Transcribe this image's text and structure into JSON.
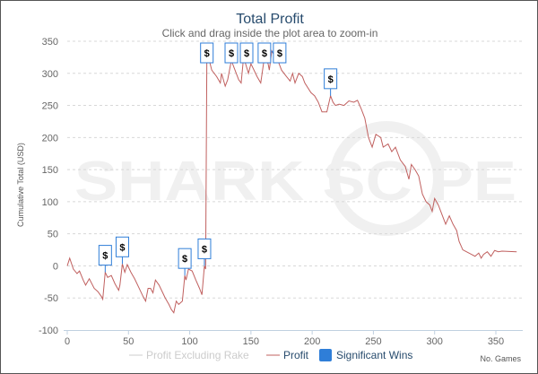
{
  "chart_data": {
    "type": "line",
    "title": "Total Profit",
    "subtitle": "Click and drag inside the plot area to zoom-in",
    "xlabel": "No. Games",
    "ylabel": "Cumulative Total (USD)",
    "xlim": [
      0,
      370
    ],
    "ylim": [
      -100,
      350
    ],
    "xticks": [
      0,
      50,
      100,
      150,
      200,
      250,
      300,
      350
    ],
    "yticks": [
      -100,
      -50,
      0,
      50,
      100,
      150,
      200,
      250,
      300,
      350
    ],
    "grid": true,
    "watermark": "SHARK SCOPE",
    "legend": {
      "position": "bottom",
      "items": [
        {
          "name": "Profit Excluding Rake",
          "visible": false
        },
        {
          "name": "Profit",
          "visible": true
        },
        {
          "name": "Significant Wins",
          "visible": true
        }
      ]
    },
    "colors": {
      "profit": "#c0605f",
      "flag": "#2f7ed8",
      "title": "#274b6d",
      "hidden": "#cccccc"
    },
    "series": [
      {
        "name": "Profit",
        "points": [
          [
            0,
            0
          ],
          [
            2,
            12
          ],
          [
            5,
            -5
          ],
          [
            8,
            -12
          ],
          [
            10,
            -8
          ],
          [
            13,
            -22
          ],
          [
            15,
            -30
          ],
          [
            18,
            -20
          ],
          [
            22,
            -35
          ],
          [
            25,
            -40
          ],
          [
            28,
            -48
          ],
          [
            29,
            -52
          ],
          [
            31,
            -10
          ],
          [
            33,
            -18
          ],
          [
            36,
            -15
          ],
          [
            39,
            -28
          ],
          [
            42,
            -38
          ],
          [
            43,
            -30
          ],
          [
            45,
            3
          ],
          [
            47,
            -10
          ],
          [
            49,
            2
          ],
          [
            52,
            -10
          ],
          [
            55,
            -20
          ],
          [
            58,
            -32
          ],
          [
            62,
            -48
          ],
          [
            64,
            -55
          ],
          [
            66,
            -35
          ],
          [
            68,
            -35
          ],
          [
            70,
            -42
          ],
          [
            72,
            -22
          ],
          [
            75,
            -30
          ],
          [
            78,
            -42
          ],
          [
            80,
            -50
          ],
          [
            83,
            -60
          ],
          [
            85,
            -68
          ],
          [
            87,
            -73
          ],
          [
            89,
            -55
          ],
          [
            91,
            -60
          ],
          [
            94,
            -55
          ],
          [
            96,
            -15
          ],
          [
            97,
            -22
          ],
          [
            99,
            -5
          ],
          [
            102,
            -8
          ],
          [
            105,
            -22
          ],
          [
            108,
            -35
          ],
          [
            110,
            -45
          ],
          [
            112,
            0
          ],
          [
            113,
            -5
          ],
          [
            114,
            325
          ],
          [
            116,
            320
          ],
          [
            118,
            305
          ],
          [
            122,
            295
          ],
          [
            125,
            285
          ],
          [
            126,
            300
          ],
          [
            129,
            280
          ],
          [
            131,
            290
          ],
          [
            134,
            320
          ],
          [
            137,
            305
          ],
          [
            140,
            290
          ],
          [
            142,
            285
          ],
          [
            144,
            325
          ],
          [
            148,
            300
          ],
          [
            150,
            315
          ],
          [
            155,
            295
          ],
          [
            158,
            285
          ],
          [
            161,
            325
          ],
          [
            164,
            315
          ],
          [
            165,
            305
          ],
          [
            167,
            335
          ],
          [
            170,
            325
          ],
          [
            172,
            320
          ],
          [
            175,
            305
          ],
          [
            179,
            295
          ],
          [
            182,
            288
          ],
          [
            184,
            300
          ],
          [
            186,
            285
          ],
          [
            189,
            300
          ],
          [
            192,
            295
          ],
          [
            194,
            285
          ],
          [
            199,
            270
          ],
          [
            202,
            265
          ],
          [
            205,
            255
          ],
          [
            208,
            240
          ],
          [
            212,
            240
          ],
          [
            215,
            265
          ],
          [
            217,
            255
          ],
          [
            219,
            250
          ],
          [
            222,
            252
          ],
          [
            226,
            250
          ],
          [
            230,
            257
          ],
          [
            234,
            255
          ],
          [
            237,
            258
          ],
          [
            240,
            245
          ],
          [
            243,
            230
          ],
          [
            246,
            200
          ],
          [
            249,
            185
          ],
          [
            252,
            205
          ],
          [
            256,
            200
          ],
          [
            258,
            185
          ],
          [
            262,
            190
          ],
          [
            265,
            178
          ],
          [
            268,
            185
          ],
          [
            272,
            165
          ],
          [
            276,
            155
          ],
          [
            279,
            135
          ],
          [
            281,
            158
          ],
          [
            284,
            150
          ],
          [
            287,
            140
          ],
          [
            290,
            112
          ],
          [
            293,
            100
          ],
          [
            296,
            95
          ],
          [
            298,
            85
          ],
          [
            300,
            105
          ],
          [
            303,
            95
          ],
          [
            306,
            80
          ],
          [
            309,
            65
          ],
          [
            312,
            78
          ],
          [
            315,
            65
          ],
          [
            318,
            55
          ],
          [
            320,
            38
          ],
          [
            323,
            25
          ],
          [
            326,
            22
          ],
          [
            330,
            18
          ],
          [
            333,
            15
          ],
          [
            336,
            20
          ],
          [
            338,
            12
          ],
          [
            340,
            18
          ],
          [
            343,
            22
          ],
          [
            346,
            15
          ],
          [
            349,
            24
          ],
          [
            352,
            22
          ],
          [
            355,
            23
          ],
          [
            367,
            22
          ]
        ]
      }
    ],
    "significant_wins": [
      {
        "x": 31,
        "y": -10,
        "label": "$"
      },
      {
        "x": 45,
        "y": 3,
        "label": "$"
      },
      {
        "x": 96,
        "y": -15,
        "label": "$"
      },
      {
        "x": 112,
        "y": 0,
        "label": "$"
      },
      {
        "x": 114,
        "y": 325,
        "label": "$"
      },
      {
        "x": 134,
        "y": 320,
        "label": "$"
      },
      {
        "x": 144,
        "y": 325,
        "label": "$"
      },
      {
        "x": 161,
        "y": 325,
        "label": "$"
      },
      {
        "x": 167,
        "y": 335,
        "label": "$"
      },
      {
        "x": 215,
        "y": 265,
        "label": "$"
      }
    ]
  }
}
